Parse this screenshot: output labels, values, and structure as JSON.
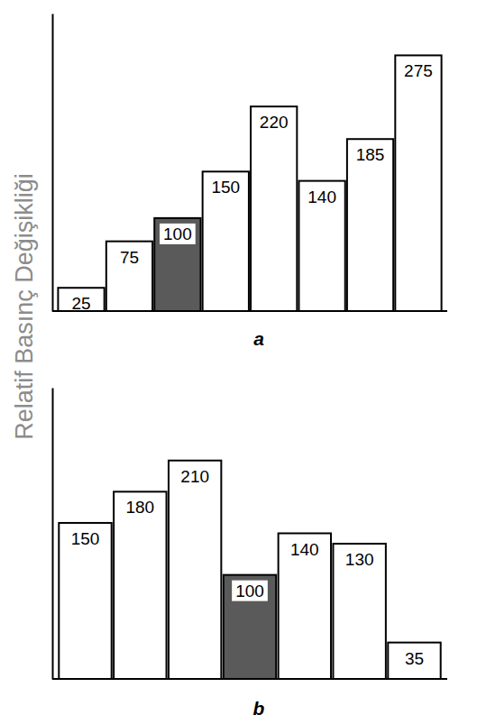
{
  "chart_data": [
    {
      "type": "bar",
      "title": "a",
      "y_label": "Relatif Basınç Değişikliği",
      "categories": [
        null,
        null,
        null,
        null,
        null,
        null,
        null,
        null
      ],
      "values": [
        25,
        75,
        100,
        150,
        220,
        140,
        185,
        275
      ],
      "colors": [
        "#ffffff",
        "#ffffff",
        "#5a5a5a",
        "#ffffff",
        "#ffffff",
        "#ffffff",
        "#ffffff",
        "#ffffff"
      ],
      "ylim": [
        0,
        320
      ],
      "yticks": [],
      "tick_labels": false,
      "data_labels": true,
      "grid": false
    },
    {
      "type": "bar",
      "title": "b",
      "categories": [
        null,
        null,
        null,
        null,
        null,
        null,
        null
      ],
      "values": [
        150,
        180,
        210,
        100,
        140,
        130,
        35
      ],
      "colors": [
        "#ffffff",
        "#ffffff",
        "#ffffff",
        "#5a5a5a",
        "#ffffff",
        "#ffffff",
        "#ffffff"
      ],
      "ylim": [
        0,
        280
      ],
      "yticks": [],
      "tick_labels": false,
      "data_labels": true,
      "grid": false
    }
  ]
}
